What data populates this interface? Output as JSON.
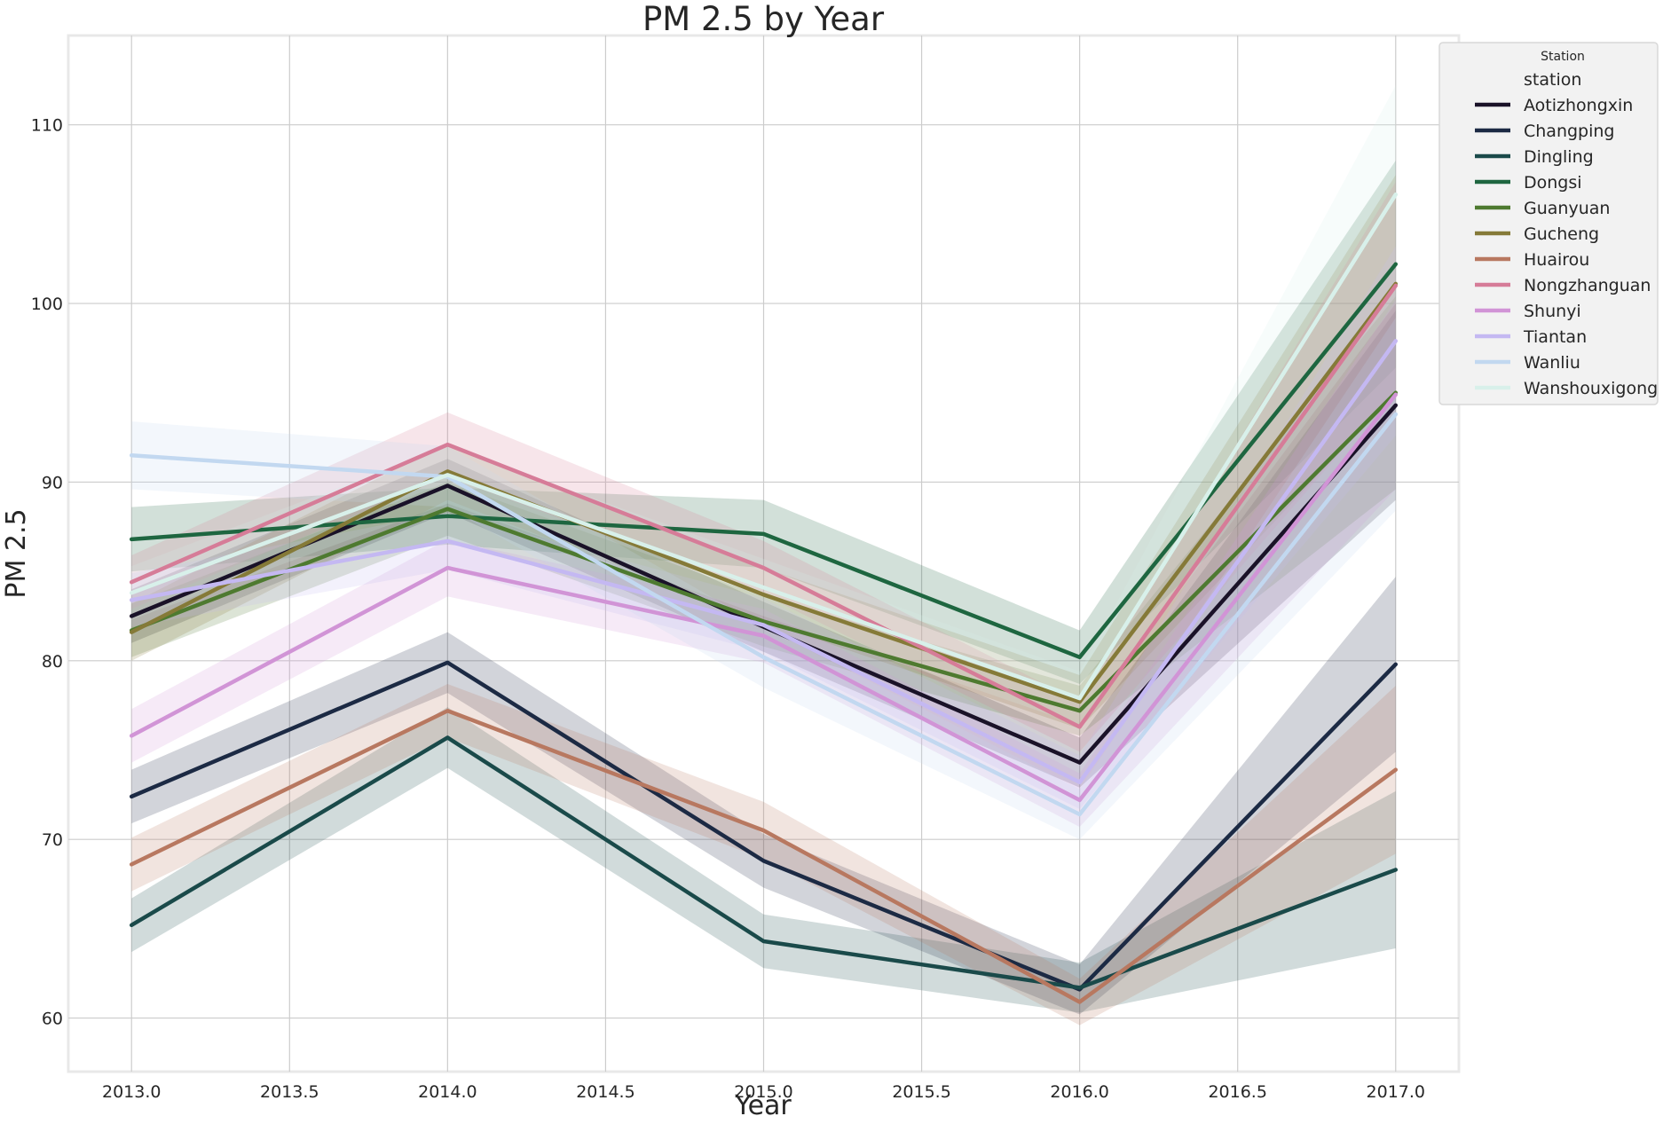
{
  "chart_data": {
    "type": "line",
    "title": "PM 2.5 by Year",
    "xlabel": "Year",
    "ylabel": "PM 2.5",
    "xlim": [
      2012.8,
      2017.2
    ],
    "ylim": [
      57,
      115
    ],
    "x_ticks": [
      2013.0,
      2013.5,
      2014.0,
      2014.5,
      2015.0,
      2015.5,
      2016.0,
      2016.5,
      2017.0
    ],
    "x_tick_labels": [
      "2013.0",
      "2013.5",
      "2014.0",
      "2014.5",
      "2015.0",
      "2015.5",
      "2016.0",
      "2016.5",
      "2017.0"
    ],
    "y_ticks": [
      60,
      70,
      80,
      90,
      100,
      110
    ],
    "y_tick_labels": [
      "60",
      "70",
      "80",
      "90",
      "100",
      "110"
    ],
    "grid": true,
    "legend": {
      "placement": "outside-top-right",
      "title": "Station",
      "subtitle": "station"
    },
    "x": [
      2013,
      2014,
      2015,
      2016,
      2017
    ],
    "series": [
      {
        "name": "Aotizhongxin",
        "color": "#1a1228",
        "values": [
          82.5,
          89.8,
          81.9,
          74.3,
          94.3
        ],
        "ci": [
          [
            81.0,
            84.0
          ],
          [
            88.3,
            91.3
          ],
          [
            80.5,
            83.3
          ],
          [
            72.9,
            75.7
          ],
          [
            89.0,
            99.6
          ]
        ]
      },
      {
        "name": "Changping",
        "color": "#1c2a44",
        "values": [
          72.4,
          79.9,
          68.8,
          61.6,
          79.8
        ],
        "ci": [
          [
            70.9,
            73.9
          ],
          [
            78.2,
            81.6
          ],
          [
            67.3,
            70.3
          ],
          [
            60.2,
            63.0
          ],
          [
            74.9,
            84.7
          ]
        ]
      },
      {
        "name": "Dingling",
        "color": "#1a4a4a",
        "values": [
          65.2,
          75.7,
          64.3,
          61.7,
          68.3
        ],
        "ci": [
          [
            63.7,
            66.7
          ],
          [
            74.0,
            77.4
          ],
          [
            62.8,
            65.8
          ],
          [
            60.3,
            63.1
          ],
          [
            63.9,
            72.7
          ]
        ]
      },
      {
        "name": "Dongsi",
        "color": "#1e6640",
        "values": [
          86.8,
          88.1,
          87.1,
          80.2,
          102.2
        ],
        "ci": [
          [
            85.0,
            88.6
          ],
          [
            86.5,
            89.7
          ],
          [
            85.2,
            89.0
          ],
          [
            78.7,
            81.7
          ],
          [
            96.4,
            108.0
          ]
        ]
      },
      {
        "name": "Guanyuan",
        "color": "#4e7a30",
        "values": [
          81.7,
          88.5,
          82.2,
          77.2,
          95.0
        ],
        "ci": [
          [
            80.2,
            83.2
          ],
          [
            87.0,
            90.0
          ],
          [
            80.8,
            83.6
          ],
          [
            75.8,
            78.6
          ],
          [
            89.6,
            100.4
          ]
        ]
      },
      {
        "name": "Gucheng",
        "color": "#857a38",
        "values": [
          81.6,
          90.6,
          83.7,
          77.7,
          101.1
        ],
        "ci": [
          [
            80.0,
            83.2
          ],
          [
            89.0,
            92.2
          ],
          [
            82.2,
            85.2
          ],
          [
            76.2,
            79.2
          ],
          [
            95.0,
            107.2
          ]
        ]
      },
      {
        "name": "Huairou",
        "color": "#b87860",
        "values": [
          68.6,
          77.2,
          70.5,
          60.9,
          73.9
        ],
        "ci": [
          [
            67.1,
            70.1
          ],
          [
            75.7,
            78.7
          ],
          [
            68.9,
            72.1
          ],
          [
            59.6,
            62.2
          ],
          [
            69.2,
            78.6
          ]
        ]
      },
      {
        "name": "Nongzhanguan",
        "color": "#d67c98",
        "values": [
          84.4,
          92.1,
          85.2,
          76.3,
          101.0
        ],
        "ci": [
          [
            82.9,
            85.9
          ],
          [
            90.3,
            93.9
          ],
          [
            83.7,
            86.7
          ],
          [
            74.9,
            77.7
          ],
          [
            95.2,
            106.8
          ]
        ]
      },
      {
        "name": "Shunyi",
        "color": "#d194d6",
        "values": [
          75.8,
          85.2,
          81.4,
          72.2,
          94.9
        ],
        "ci": [
          [
            74.3,
            77.3
          ],
          [
            83.6,
            86.8
          ],
          [
            79.9,
            82.9
          ],
          [
            70.7,
            73.7
          ],
          [
            89.6,
            100.2
          ]
        ]
      },
      {
        "name": "Tiantan",
        "color": "#c4b8f2",
        "values": [
          83.4,
          86.7,
          82.0,
          73.2,
          97.9
        ],
        "ci": [
          [
            81.9,
            84.9
          ],
          [
            85.1,
            88.3
          ],
          [
            80.5,
            83.5
          ],
          [
            71.7,
            74.7
          ],
          [
            92.6,
            103.2
          ]
        ]
      },
      {
        "name": "Wanliu",
        "color": "#c2d8f0",
        "values": [
          91.5,
          90.3,
          80.2,
          71.4,
          93.8
        ],
        "ci": [
          [
            89.6,
            93.4
          ],
          [
            88.6,
            92.0
          ],
          [
            78.5,
            81.9
          ],
          [
            70.0,
            72.8
          ],
          [
            88.4,
            99.2
          ]
        ]
      },
      {
        "name": "Wanshouxigong",
        "color": "#d8f0ea",
        "values": [
          83.8,
          90.4,
          84.1,
          77.9,
          106.1
        ],
        "ci": [
          [
            82.3,
            85.3
          ],
          [
            88.8,
            92.0
          ],
          [
            82.5,
            85.7
          ],
          [
            76.4,
            79.4
          ],
          [
            100.0,
            112.2
          ]
        ]
      }
    ]
  }
}
